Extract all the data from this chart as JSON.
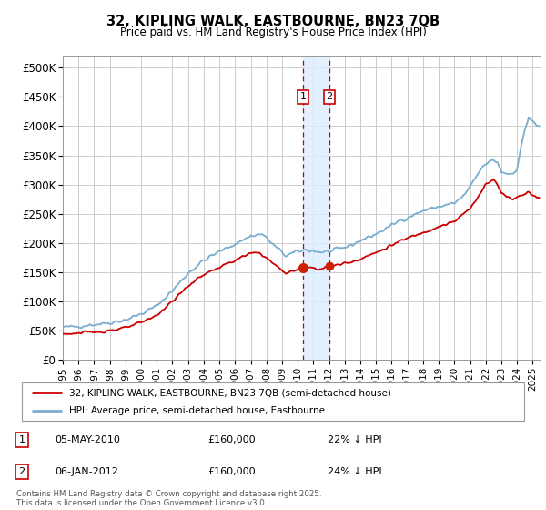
{
  "title": "32, KIPLING WALK, EASTBOURNE, BN23 7QB",
  "subtitle": "Price paid vs. HM Land Registry's House Price Index (HPI)",
  "xlim_start": 1995.0,
  "xlim_end": 2025.5,
  "ylim_min": 0,
  "ylim_max": 520000,
  "yticks": [
    0,
    50000,
    100000,
    150000,
    200000,
    250000,
    300000,
    350000,
    400000,
    450000,
    500000
  ],
  "ytick_labels": [
    "£0",
    "£50K",
    "£100K",
    "£150K",
    "£200K",
    "£250K",
    "£300K",
    "£350K",
    "£400K",
    "£450K",
    "£500K"
  ],
  "transaction1": {
    "date": 2010.35,
    "price": 160000,
    "label": "1",
    "date_str": "05-MAY-2010",
    "pct": "22% ↓ HPI"
  },
  "transaction2": {
    "date": 2012.02,
    "price": 160000,
    "label": "2",
    "date_str": "06-JAN-2012",
    "pct": "24% ↓ HPI"
  },
  "legend_line1": "32, KIPLING WALK, EASTBOURNE, BN23 7QB (semi-detached house)",
  "legend_line2": "HPI: Average price, semi-detached house, Eastbourne",
  "footer": "Contains HM Land Registry data © Crown copyright and database right 2025.\nThis data is licensed under the Open Government Licence v3.0.",
  "line_color_red": "#cc0000",
  "line_color_blue": "#7aadcf",
  "marker_fill": "#cc2200",
  "shading_color": "#ddeeff",
  "grid_color": "#cccccc",
  "background_color": "#ffffff",
  "hpi_anchors": [
    [
      1995.0,
      55000
    ],
    [
      1996.0,
      57000
    ],
    [
      1997.0,
      60000
    ],
    [
      1998.0,
      63000
    ],
    [
      1999.0,
      68000
    ],
    [
      2000.0,
      78000
    ],
    [
      2001.0,
      92000
    ],
    [
      2002.0,
      118000
    ],
    [
      2003.0,
      148000
    ],
    [
      2004.0,
      170000
    ],
    [
      2005.0,
      185000
    ],
    [
      2006.0,
      198000
    ],
    [
      2007.0,
      212000
    ],
    [
      2007.75,
      215000
    ],
    [
      2008.5,
      195000
    ],
    [
      2009.25,
      178000
    ],
    [
      2010.0,
      185000
    ],
    [
      2010.5,
      188000
    ],
    [
      2011.0,
      186000
    ],
    [
      2011.5,
      184000
    ],
    [
      2012.0,
      185000
    ],
    [
      2012.5,
      188000
    ],
    [
      2013.0,
      192000
    ],
    [
      2013.5,
      197000
    ],
    [
      2014.0,
      204000
    ],
    [
      2015.0,
      215000
    ],
    [
      2016.0,
      230000
    ],
    [
      2016.5,
      238000
    ],
    [
      2017.0,
      243000
    ],
    [
      2018.0,
      255000
    ],
    [
      2019.0,
      262000
    ],
    [
      2019.5,
      265000
    ],
    [
      2020.0,
      268000
    ],
    [
      2020.5,
      278000
    ],
    [
      2021.0,
      295000
    ],
    [
      2021.5,
      318000
    ],
    [
      2021.75,
      328000
    ],
    [
      2022.0,
      335000
    ],
    [
      2022.5,
      342000
    ],
    [
      2022.75,
      338000
    ],
    [
      2023.0,
      322000
    ],
    [
      2023.5,
      318000
    ],
    [
      2023.75,
      320000
    ],
    [
      2024.0,
      328000
    ],
    [
      2024.5,
      395000
    ],
    [
      2024.75,
      415000
    ],
    [
      2025.0,
      408000
    ],
    [
      2025.25,
      400000
    ]
  ],
  "pp_anchors": [
    [
      1995.0,
      44000
    ],
    [
      1996.0,
      45000
    ],
    [
      1997.0,
      47000
    ],
    [
      1998.0,
      50000
    ],
    [
      1999.0,
      54000
    ],
    [
      2000.0,
      63000
    ],
    [
      2001.0,
      76000
    ],
    [
      2002.0,
      100000
    ],
    [
      2003.0,
      126000
    ],
    [
      2004.0,
      146000
    ],
    [
      2005.0,
      158000
    ],
    [
      2006.0,
      170000
    ],
    [
      2007.0,
      182000
    ],
    [
      2007.6,
      183000
    ],
    [
      2008.5,
      163000
    ],
    [
      2009.25,
      148000
    ],
    [
      2010.0,
      154000
    ],
    [
      2010.35,
      160000
    ],
    [
      2010.75,
      158000
    ],
    [
      2011.0,
      157000
    ],
    [
      2011.5,
      155000
    ],
    [
      2012.02,
      160000
    ],
    [
      2012.5,
      162000
    ],
    [
      2013.0,
      165000
    ],
    [
      2013.5,
      168000
    ],
    [
      2014.0,
      173000
    ],
    [
      2015.0,
      183000
    ],
    [
      2016.0,
      196000
    ],
    [
      2016.5,
      202000
    ],
    [
      2017.0,
      208000
    ],
    [
      2018.0,
      218000
    ],
    [
      2019.0,
      228000
    ],
    [
      2019.5,
      232000
    ],
    [
      2020.0,
      236000
    ],
    [
      2020.5,
      248000
    ],
    [
      2021.0,
      258000
    ],
    [
      2021.5,
      278000
    ],
    [
      2021.75,
      290000
    ],
    [
      2022.0,
      302000
    ],
    [
      2022.5,
      308000
    ],
    [
      2022.75,
      300000
    ],
    [
      2023.0,
      285000
    ],
    [
      2023.5,
      278000
    ],
    [
      2023.75,
      275000
    ],
    [
      2024.0,
      278000
    ],
    [
      2024.5,
      285000
    ],
    [
      2024.75,
      288000
    ],
    [
      2025.0,
      282000
    ],
    [
      2025.25,
      278000
    ]
  ]
}
